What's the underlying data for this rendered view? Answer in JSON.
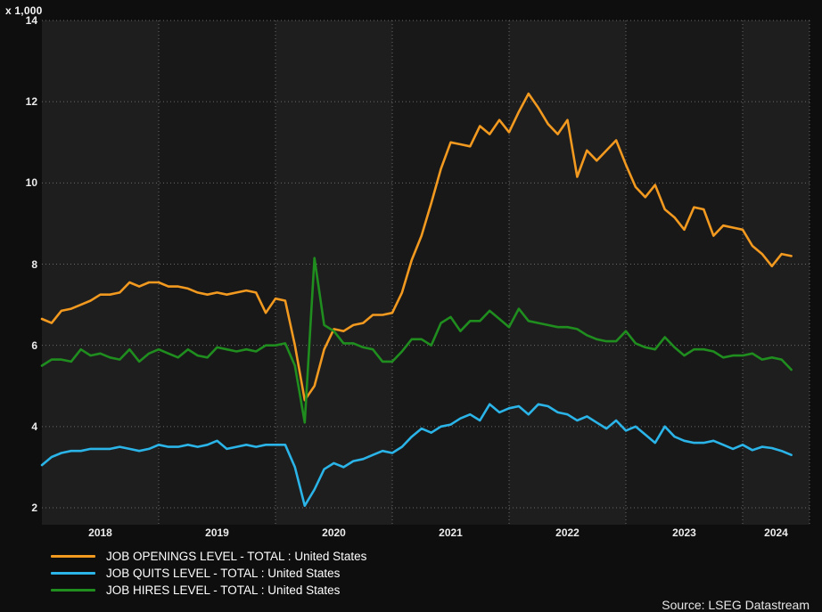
{
  "window": {
    "kind": "datastream-chart-export"
  },
  "axis": {
    "unit_label": "x 1,000"
  },
  "source": {
    "label": "Source: LSEG Datastream"
  },
  "colors": {
    "page_background": "#0e0e0e",
    "band_light": "#1e1e1e",
    "band_dark": "#181818",
    "gridline": "#6a6a6a",
    "tick_text": "#ececec",
    "legend_text": "#ffffff",
    "openings": "#f2991f",
    "quits": "#2bb4e8",
    "hires": "#1f8e1f"
  },
  "chart_data": {
    "type": "line",
    "title": "",
    "unit_label": "x 1,000",
    "xlabel": "",
    "ylabel": "",
    "x_start": "2018-01",
    "x_end": "2024-06",
    "x_frequency": "monthly",
    "x_tick_years": [
      2018,
      2019,
      2020,
      2021,
      2022,
      2023,
      2024
    ],
    "ylim": [
      2,
      14
    ],
    "y_ticks": [
      2,
      4,
      6,
      8,
      10,
      12,
      14
    ],
    "grid": "dotted",
    "legend_position": "bottom-left",
    "series": [
      {
        "name": "JOB OPENINGS LEVEL - TOTAL : United States",
        "color": "#f2991f",
        "values": [
          6.65,
          6.55,
          6.85,
          6.9,
          7.0,
          7.1,
          7.25,
          7.25,
          7.3,
          7.55,
          7.45,
          7.55,
          7.55,
          7.45,
          7.45,
          7.4,
          7.3,
          7.25,
          7.3,
          7.25,
          7.3,
          7.35,
          7.3,
          6.8,
          7.15,
          7.1,
          6.0,
          4.65,
          5.0,
          5.9,
          6.4,
          6.35,
          6.5,
          6.55,
          6.75,
          6.75,
          6.8,
          7.3,
          8.1,
          8.7,
          9.5,
          10.35,
          11.0,
          10.95,
          10.9,
          11.4,
          11.2,
          11.55,
          11.25,
          11.75,
          12.2,
          11.85,
          11.45,
          11.2,
          11.55,
          10.15,
          10.8,
          10.55,
          10.8,
          11.05,
          10.45,
          9.9,
          9.65,
          9.95,
          9.35,
          9.15,
          8.85,
          9.4,
          9.35,
          8.7,
          8.95,
          8.9,
          8.85,
          8.45,
          8.25,
          7.95,
          8.25,
          8.2
        ]
      },
      {
        "name": "JOB QUITS LEVEL - TOTAL : United States",
        "color": "#2bb4e8",
        "values": [
          3.05,
          3.25,
          3.35,
          3.4,
          3.4,
          3.45,
          3.45,
          3.45,
          3.5,
          3.45,
          3.4,
          3.45,
          3.55,
          3.5,
          3.5,
          3.55,
          3.5,
          3.55,
          3.65,
          3.45,
          3.5,
          3.55,
          3.5,
          3.55,
          3.55,
          3.55,
          3.0,
          2.05,
          2.45,
          2.95,
          3.1,
          3.0,
          3.15,
          3.2,
          3.3,
          3.4,
          3.35,
          3.5,
          3.75,
          3.95,
          3.85,
          4.0,
          4.05,
          4.2,
          4.3,
          4.15,
          4.55,
          4.35,
          4.45,
          4.5,
          4.3,
          4.55,
          4.5,
          4.35,
          4.3,
          4.15,
          4.25,
          4.1,
          3.95,
          4.15,
          3.9,
          4.0,
          3.8,
          3.6,
          4.0,
          3.75,
          3.65,
          3.6,
          3.6,
          3.65,
          3.55,
          3.45,
          3.55,
          3.42,
          3.5,
          3.47,
          3.4,
          3.3
        ]
      },
      {
        "name": "JOB HIRES LEVEL - TOTAL : United States",
        "color": "#1f8e1f",
        "values": [
          5.5,
          5.65,
          5.65,
          5.6,
          5.9,
          5.75,
          5.8,
          5.7,
          5.65,
          5.9,
          5.6,
          5.8,
          5.9,
          5.8,
          5.7,
          5.9,
          5.75,
          5.7,
          5.95,
          5.9,
          5.85,
          5.9,
          5.85,
          6.0,
          6.0,
          6.05,
          5.5,
          4.1,
          8.15,
          6.5,
          6.35,
          6.05,
          6.05,
          5.95,
          5.9,
          5.6,
          5.6,
          5.85,
          6.15,
          6.15,
          6.0,
          6.55,
          6.7,
          6.35,
          6.6,
          6.6,
          6.85,
          6.65,
          6.45,
          6.9,
          6.6,
          6.55,
          6.5,
          6.45,
          6.45,
          6.4,
          6.25,
          6.15,
          6.1,
          6.1,
          6.35,
          6.05,
          5.95,
          5.9,
          6.2,
          5.95,
          5.75,
          5.9,
          5.9,
          5.85,
          5.7,
          5.75,
          5.75,
          5.8,
          5.65,
          5.7,
          5.65,
          5.4
        ]
      }
    ]
  }
}
